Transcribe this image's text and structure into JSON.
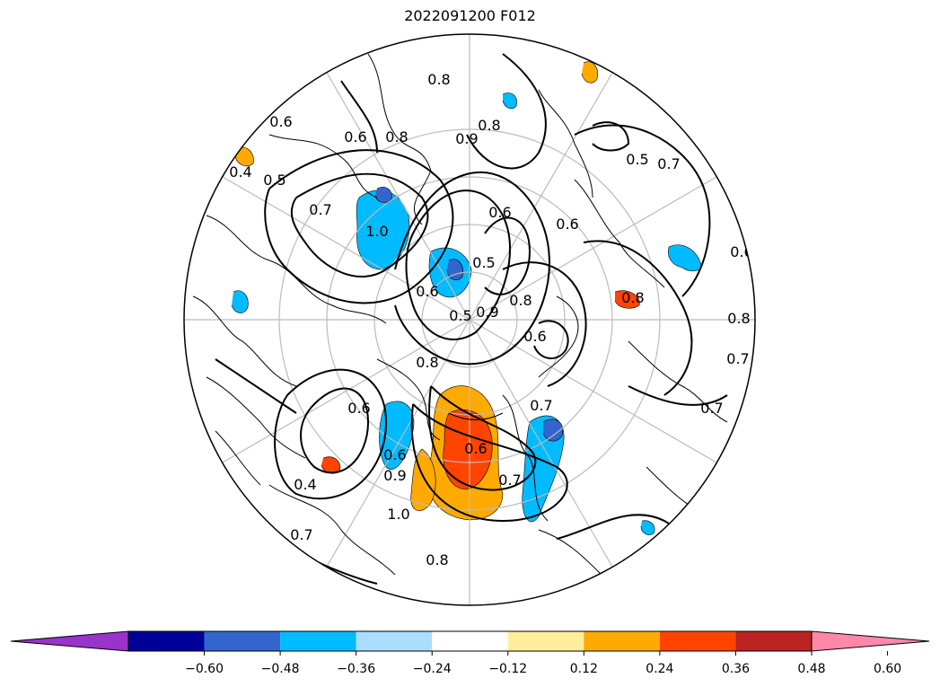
{
  "title": "2022091200 F012",
  "contour_labels": [
    "0.4",
    "0.5",
    "0.6",
    "0.6",
    "0.7",
    "0.8",
    "0.8",
    "0.8",
    "0.9",
    "1.0",
    "0.6",
    "0.6",
    "0.5",
    "0.5",
    "0.7",
    "0.8",
    "0.6",
    "0.8",
    "0.7",
    "0.7",
    "0.6",
    "0.6",
    "0.5",
    "0.4",
    "0.7",
    "0.6",
    "0.9",
    "0.7",
    "0.8",
    "0.7",
    "1.0",
    "0.6",
    "0.6",
    "0.8",
    "0.8",
    "0.9"
  ],
  "colorbar": {
    "ticks": [
      "−0.60",
      "−0.48",
      "−0.36",
      "−0.24",
      "−0.12",
      "0.12",
      "0.24",
      "0.36",
      "0.48",
      "0.60"
    ],
    "colors": [
      "#9933cc",
      "#000099",
      "#3366cc",
      "#00bbff",
      "#aaddff",
      "#ffffff",
      "#ffee99",
      "#ffaa00",
      "#ff4400",
      "#bb2222",
      "#ff88aa"
    ]
  },
  "shading": {
    "neg_light": "#00bbff",
    "neg_mid": "#3366cc",
    "pos_light": "#ffaa00",
    "pos_mid": "#ff4400",
    "pos_pale": "#ffee99"
  }
}
